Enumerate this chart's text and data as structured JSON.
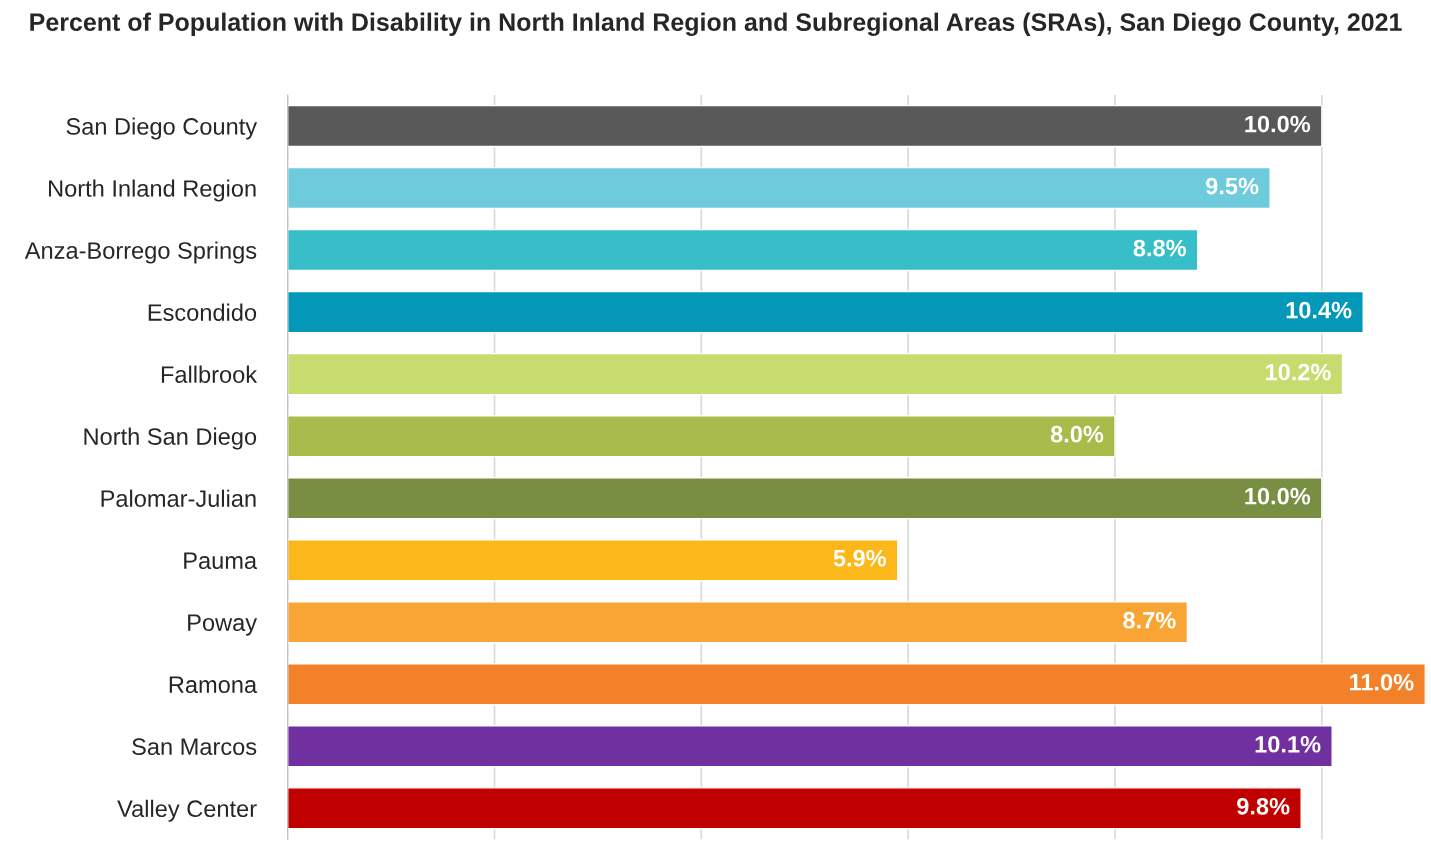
{
  "chart_data": {
    "type": "bar",
    "orientation": "horizontal",
    "title": "Percent of Population with Disability in North Inland Region and Subregional Areas (SRAs), San Diego County, 2021",
    "categories": [
      "San Diego County",
      "North Inland Region",
      "Anza-Borrego Springs",
      "Escondido",
      "Fallbrook",
      "North San Diego",
      "Palomar-Julian",
      "Pauma",
      "Poway",
      "Ramona",
      "San Marcos",
      "Valley Center"
    ],
    "values": [
      10.0,
      9.5,
      8.8,
      10.4,
      10.2,
      8.0,
      10.0,
      5.9,
      8.7,
      11.0,
      10.1,
      9.8
    ],
    "value_labels": [
      "10.0%",
      "9.5%",
      "8.8%",
      "10.4%",
      "10.2%",
      "8.0%",
      "10.0%",
      "5.9%",
      "8.7%",
      "11.0%",
      "10.1%",
      "9.8%"
    ],
    "colors": [
      "#595959",
      "#6ecbdc",
      "#38bec9",
      "#0397b8",
      "#c7dc6e",
      "#a8bb4b",
      "#788f43",
      "#fcb81b",
      "#f8a535",
      "#f28129",
      "#7030a0",
      "#c00000"
    ],
    "xlim": [
      0,
      11
    ],
    "xticks": [
      {
        "value": 0,
        "label": null
      },
      {
        "value": 2,
        "label": null
      },
      {
        "value": 4,
        "label": null
      },
      {
        "value": 6,
        "label": null
      },
      {
        "value": 8,
        "label": null
      },
      {
        "value": 10,
        "label": null
      }
    ],
    "grid": "x",
    "tick_labels": "y",
    "legend": false
  }
}
